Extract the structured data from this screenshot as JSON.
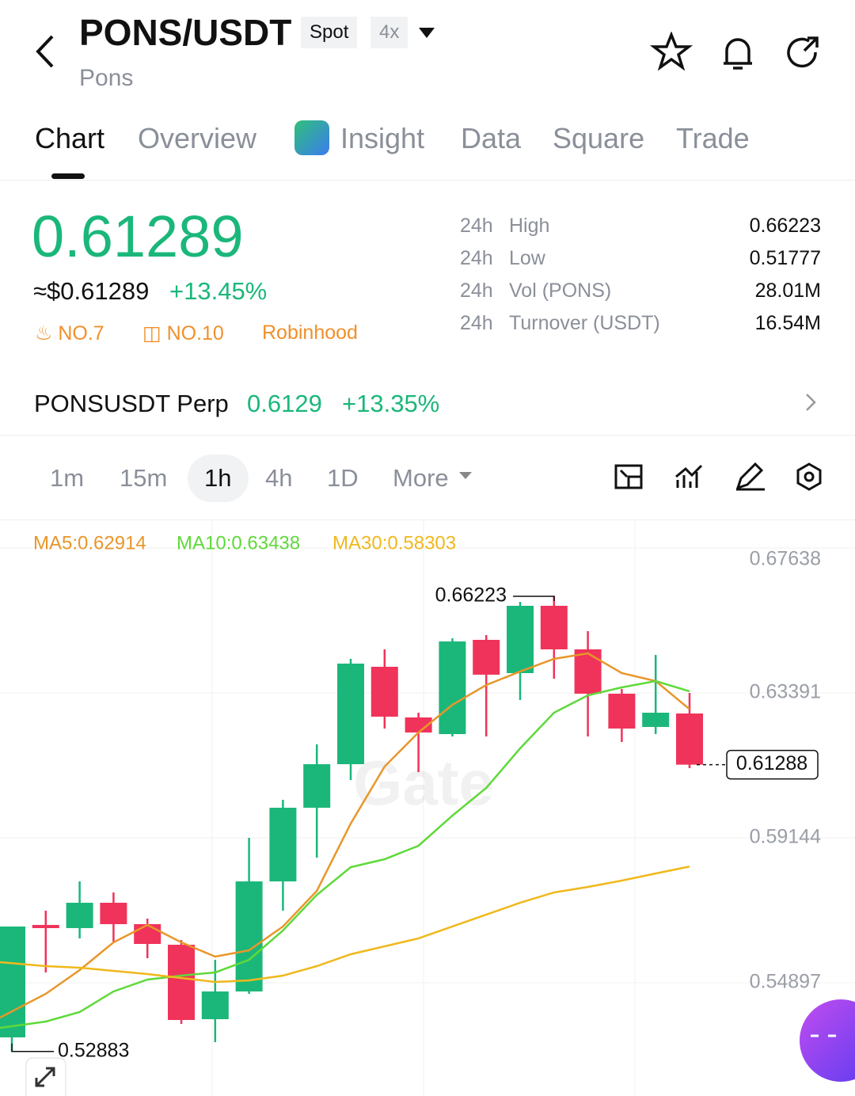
{
  "header": {
    "pair": "PONS/USDT",
    "badges": [
      "Spot",
      "4x"
    ],
    "name": "Pons"
  },
  "tabs": [
    "Chart",
    "Overview",
    "Insight",
    "Data",
    "Square",
    "Trade"
  ],
  "price": {
    "last": "0.61289",
    "usd": "≈$0.61289",
    "change": "+13.45%",
    "tags": [
      "NO.7",
      "NO.10",
      "Robinhood"
    ]
  },
  "stats": [
    {
      "period": "24h",
      "label": "High",
      "value": "0.66223"
    },
    {
      "period": "24h",
      "label": "Low",
      "value": "0.51777"
    },
    {
      "period": "24h",
      "label": "Vol (PONS)",
      "value": "28.01M"
    },
    {
      "period": "24h",
      "label": "Turnover (USDT)",
      "value": "16.54M"
    }
  ],
  "perp": {
    "name": "PONSUSDT Perp",
    "price": "0.6129",
    "change": "+13.35%"
  },
  "intervals": [
    "1m",
    "15m",
    "1h",
    "4h",
    "1D",
    "More"
  ],
  "chart_data": {
    "type": "candlestick",
    "watermark": "Gate",
    "up_color": "#1bb77a",
    "down_color": "#f0335a",
    "open": [
      0.53296,
      0.56591,
      0.56498,
      0.57241,
      0.56614,
      0.56011,
      0.53829,
      0.54642,
      0.57867,
      0.60026,
      0.61302,
      0.64157,
      0.62672,
      0.62184,
      0.64946,
      0.63971,
      0.65944,
      0.64667,
      0.63368,
      0.62393,
      0.62788
    ],
    "high": [
      0.56545,
      0.57009,
      0.57867,
      0.57543,
      0.56777,
      0.5615,
      0.5557,
      0.59144,
      0.60258,
      0.61882,
      0.64389,
      0.64667,
      0.62811,
      0.64992,
      0.65085,
      0.6606,
      0.66223,
      0.65201,
      0.63507,
      0.64505,
      0.63391
    ],
    "low": [
      0.52883,
      0.55199,
      0.56197,
      0.5608,
      0.55616,
      0.5369,
      0.53156,
      0.54572,
      0.57009,
      0.58564,
      0.60838,
      0.62347,
      0.6107,
      0.62115,
      0.62115,
      0.63182,
      0.63809,
      0.62115,
      0.61952,
      0.62184,
      0.61186
    ],
    "close": [
      0.56545,
      0.56498,
      0.57241,
      0.56614,
      0.56034,
      0.53806,
      0.54642,
      0.57867,
      0.60026,
      0.61302,
      0.6425,
      0.62695,
      0.62231,
      0.649,
      0.63925,
      0.65944,
      0.64667,
      0.63368,
      0.62347,
      0.62811,
      0.61288
    ],
    "series": [
      {
        "name": "MA5:0.62914",
        "color": "#e8962a",
        "values": [
          0.53876,
          0.54572,
          0.55268,
          0.5608,
          0.56591,
          0.5608,
          0.55663,
          0.55848,
          0.56545,
          0.57589,
          0.59562,
          0.61233,
          0.62231,
          0.63043,
          0.63623,
          0.64018,
          0.64389,
          0.64551,
          0.63971,
          0.63739,
          0.62914
        ]
      },
      {
        "name": "MA10:0.63438",
        "color": "#5fd93a",
        "values": [
          0.53574,
          0.5376,
          0.54038,
          0.54642,
          0.5499,
          0.55106,
          0.55199,
          0.5557,
          0.56429,
          0.57473,
          0.58285,
          0.58517,
          0.58912,
          0.59794,
          0.60606,
          0.61766,
          0.62811,
          0.63321,
          0.63553,
          0.63739,
          0.63438
        ]
      },
      {
        "name": "MA30:0.58303",
        "color": "#f0b81c",
        "values": [
          0.555,
          0.55384,
          0.55338,
          0.55245,
          0.55152,
          0.55036,
          0.5492,
          0.54966,
          0.55106,
          0.55384,
          0.55732,
          0.55964,
          0.56197,
          0.56545,
          0.56893,
          0.57241,
          0.57543,
          0.57705,
          0.57891,
          0.581,
          0.58303
        ]
      }
    ],
    "annotations": {
      "high": 0.66223,
      "low": 0.52883,
      "last": 0.61288
    },
    "ylim": [
      0.51578,
      0.6845
    ],
    "yticks": [
      0.67638,
      0.63391,
      0.59144,
      0.54897
    ],
    "grid": true
  }
}
